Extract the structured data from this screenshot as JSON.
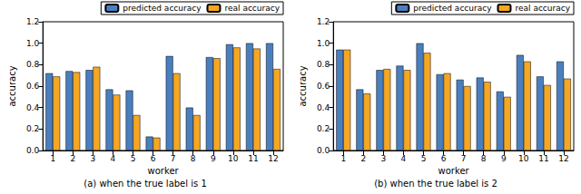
{
  "chart_data": [
    {
      "type": "bar",
      "title": "(a) when the true label is 1",
      "x_label": "worker",
      "y_label": "accuracy",
      "categories": [
        "1",
        "2",
        "3",
        "4",
        "5",
        "6",
        "7",
        "8",
        "9",
        "10",
        "11",
        "12"
      ],
      "series": [
        {
          "name": "predicted accuracy",
          "color": "#4a7fbf",
          "values": [
            0.72,
            0.74,
            0.75,
            0.57,
            0.56,
            0.13,
            0.88,
            0.4,
            0.87,
            0.99,
            1.0,
            1.0
          ]
        },
        {
          "name": "real accuracy",
          "color": "#f5a623",
          "values": [
            0.69,
            0.73,
            0.78,
            0.52,
            0.33,
            0.12,
            0.72,
            0.33,
            0.86,
            0.96,
            0.95,
            0.76
          ]
        }
      ],
      "ylim": [
        0,
        1.2
      ],
      "yticks": [
        {
          "value": 0,
          "label": "0.0"
        },
        {
          "value": 0.2,
          "label": "0.2"
        },
        {
          "value": 0.4,
          "label": "0.4"
        },
        {
          "value": 0.6,
          "label": "0.6"
        },
        {
          "value": 0.8,
          "label": "0.8"
        },
        {
          "value": 1,
          "label": "1.0"
        },
        {
          "value": 1.2,
          "label": "1.2"
        }
      ],
      "legend": "upper right",
      "grid": false
    },
    {
      "type": "bar",
      "title": "(b) when the true label is 2",
      "x_label": "worker",
      "y_label": "accuracy",
      "categories": [
        "1",
        "2",
        "3",
        "4",
        "5",
        "6",
        "7",
        "8",
        "9",
        "10",
        "11",
        "12"
      ],
      "series": [
        {
          "name": "predicted accuracy",
          "color": "#4a7fbf",
          "values": [
            0.94,
            0.57,
            0.75,
            0.79,
            1.0,
            0.71,
            0.66,
            0.68,
            0.55,
            0.89,
            0.69,
            0.83
          ]
        },
        {
          "name": "real accuracy",
          "color": "#f5a623",
          "values": [
            0.94,
            0.53,
            0.76,
            0.75,
            0.91,
            0.72,
            0.6,
            0.64,
            0.5,
            0.83,
            0.61,
            0.67
          ]
        }
      ],
      "ylim": [
        0,
        1.2
      ],
      "yticks": [
        {
          "value": 0,
          "label": "0.0"
        },
        {
          "value": 0.2,
          "label": "0.2"
        },
        {
          "value": 0.4,
          "label": "0.4"
        },
        {
          "value": 0.6,
          "label": "0.6"
        },
        {
          "value": 0.8,
          "label": "0.8"
        },
        {
          "value": 1,
          "label": "1.0"
        },
        {
          "value": 1.2,
          "label": "1.2"
        }
      ],
      "legend": "upper right",
      "grid": false
    }
  ]
}
